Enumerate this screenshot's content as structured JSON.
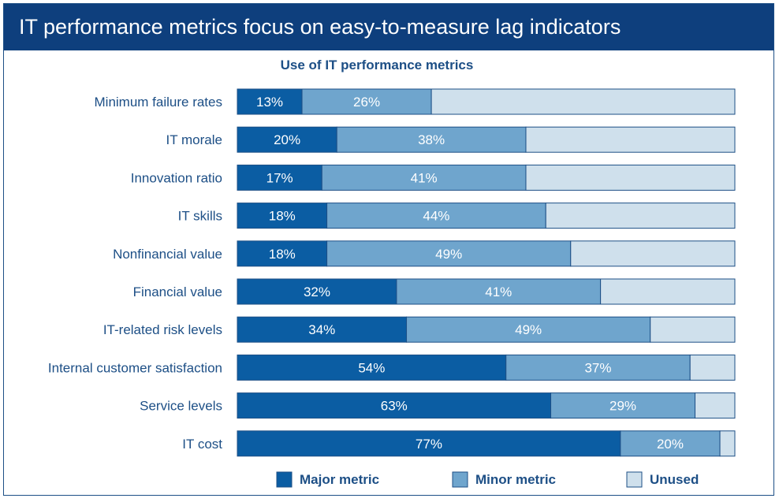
{
  "header": {
    "title": "IT performance metrics focus on easy-to-measure lag indicators"
  },
  "colors": {
    "major": "#0b5da3",
    "minor": "#6fa5cd",
    "unused": "#cfe0ec",
    "border": "#1d4f86",
    "text": "#1d4f86"
  },
  "chart_data": {
    "type": "bar",
    "orientation": "horizontal",
    "stacked": true,
    "title": "Use of IT performance metrics",
    "categories": [
      "Minimum failure rates",
      "IT morale",
      "Innovation ratio",
      "IT skills",
      "Nonfinancial value",
      "Financial value",
      "IT-related risk levels",
      "Internal customer satisfaction",
      "Service levels",
      "IT cost"
    ],
    "series": [
      {
        "name": "Major metric",
        "values": [
          13,
          20,
          17,
          18,
          18,
          32,
          34,
          54,
          63,
          77
        ]
      },
      {
        "name": "Minor metric",
        "values": [
          26,
          38,
          41,
          44,
          49,
          41,
          49,
          37,
          29,
          20
        ]
      },
      {
        "name": "Unused",
        "values": [
          61,
          42,
          42,
          38,
          33,
          27,
          17,
          9,
          8,
          3
        ]
      }
    ],
    "labeled_series": [
      "Major metric",
      "Minor metric"
    ],
    "value_suffix": "%",
    "xlim": [
      0,
      100
    ],
    "grid": false,
    "legend": "bottom"
  }
}
